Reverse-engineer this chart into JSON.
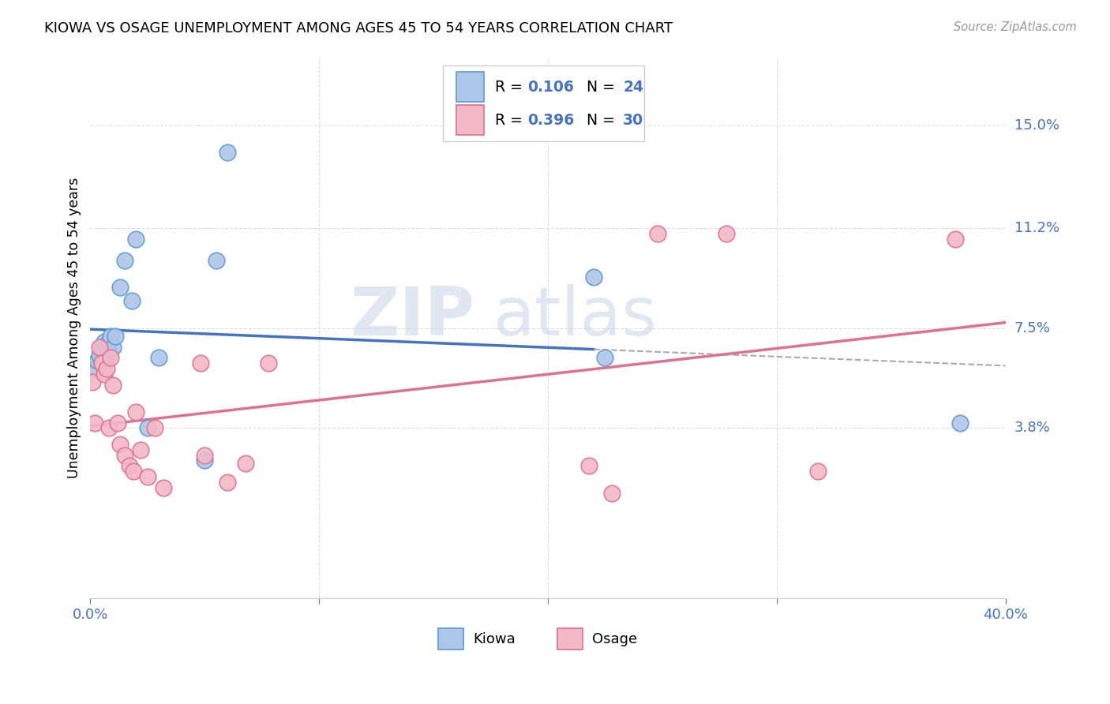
{
  "title": "KIOWA VS OSAGE UNEMPLOYMENT AMONG AGES 45 TO 54 YEARS CORRELATION CHART",
  "source": "Source: ZipAtlas.com",
  "ylabel": "Unemployment Among Ages 45 to 54 years",
  "xlim": [
    0.0,
    0.4
  ],
  "ylim": [
    -0.025,
    0.175
  ],
  "xticks": [
    0.0,
    0.1,
    0.2,
    0.3,
    0.4
  ],
  "xticklabels": [
    "0.0%",
    "",
    "",
    "",
    "40.0%"
  ],
  "ytick_positions": [
    0.038,
    0.075,
    0.112,
    0.15
  ],
  "ytick_labels": [
    "3.8%",
    "7.5%",
    "11.2%",
    "15.0%"
  ],
  "kiowa_color": "#aec6e8",
  "kiowa_edge": "#5b9bd5",
  "osage_color": "#f2b8c6",
  "osage_edge": "#e07090",
  "kiowa_line_color": "#4472c4",
  "osage_line_color": "#e07090",
  "kiowa_R": 0.106,
  "kiowa_N": 24,
  "osage_R": 0.396,
  "osage_N": 30,
  "kiowa_x": [
    0.002,
    0.003,
    0.004,
    0.005,
    0.005,
    0.006,
    0.007,
    0.008,
    0.008,
    0.009,
    0.01,
    0.011,
    0.013,
    0.015,
    0.018,
    0.02,
    0.025,
    0.03,
    0.05,
    0.055,
    0.06,
    0.22,
    0.225,
    0.38
  ],
  "kiowa_y": [
    0.06,
    0.063,
    0.065,
    0.062,
    0.068,
    0.07,
    0.064,
    0.066,
    0.07,
    0.072,
    0.068,
    0.072,
    0.09,
    0.1,
    0.085,
    0.108,
    0.038,
    0.064,
    0.026,
    0.1,
    0.14,
    0.094,
    0.064,
    0.04
  ],
  "osage_x": [
    0.001,
    0.002,
    0.004,
    0.005,
    0.006,
    0.007,
    0.008,
    0.009,
    0.01,
    0.012,
    0.013,
    0.015,
    0.017,
    0.019,
    0.02,
    0.022,
    0.025,
    0.028,
    0.032,
    0.048,
    0.05,
    0.06,
    0.068,
    0.078,
    0.218,
    0.228,
    0.248,
    0.278,
    0.318,
    0.378
  ],
  "osage_y": [
    0.055,
    0.04,
    0.068,
    0.062,
    0.058,
    0.06,
    0.038,
    0.064,
    0.054,
    0.04,
    0.032,
    0.028,
    0.024,
    0.022,
    0.044,
    0.03,
    0.02,
    0.038,
    0.016,
    0.062,
    0.028,
    0.018,
    0.025,
    0.062,
    0.024,
    0.014,
    0.11,
    0.11,
    0.022,
    0.108
  ],
  "watermark_zip": "ZIP",
  "watermark_atlas": "atlas",
  "background_color": "#ffffff",
  "grid_color": "#dddddd",
  "label_color": "#4472c4"
}
